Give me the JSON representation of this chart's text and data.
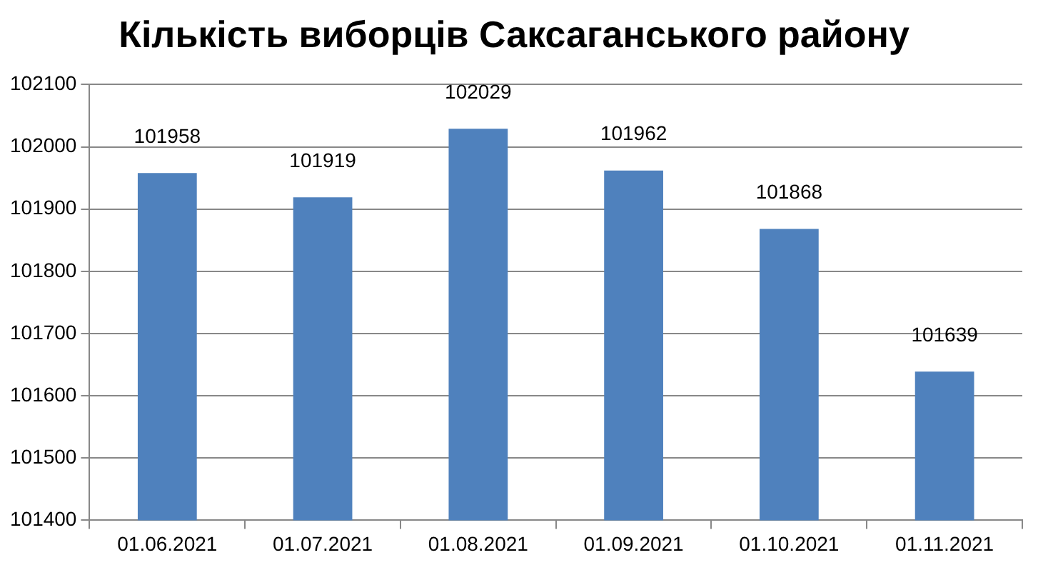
{
  "chart_data": {
    "type": "bar",
    "title": "Кількість виборців Саксаганського району",
    "categories": [
      "01.06.2021",
      "01.07.2021",
      "01.08.2021",
      "01.09.2021",
      "01.10.2021",
      "01.11.2021"
    ],
    "values": [
      101958,
      101919,
      102029,
      101962,
      101868,
      101639
    ],
    "color": "#4f81bd",
    "ylim": [
      101400,
      102100
    ],
    "yticks": [
      101400,
      101500,
      101600,
      101700,
      101800,
      101900,
      102000,
      102100
    ],
    "grid": "y",
    "data_labels": true
  }
}
